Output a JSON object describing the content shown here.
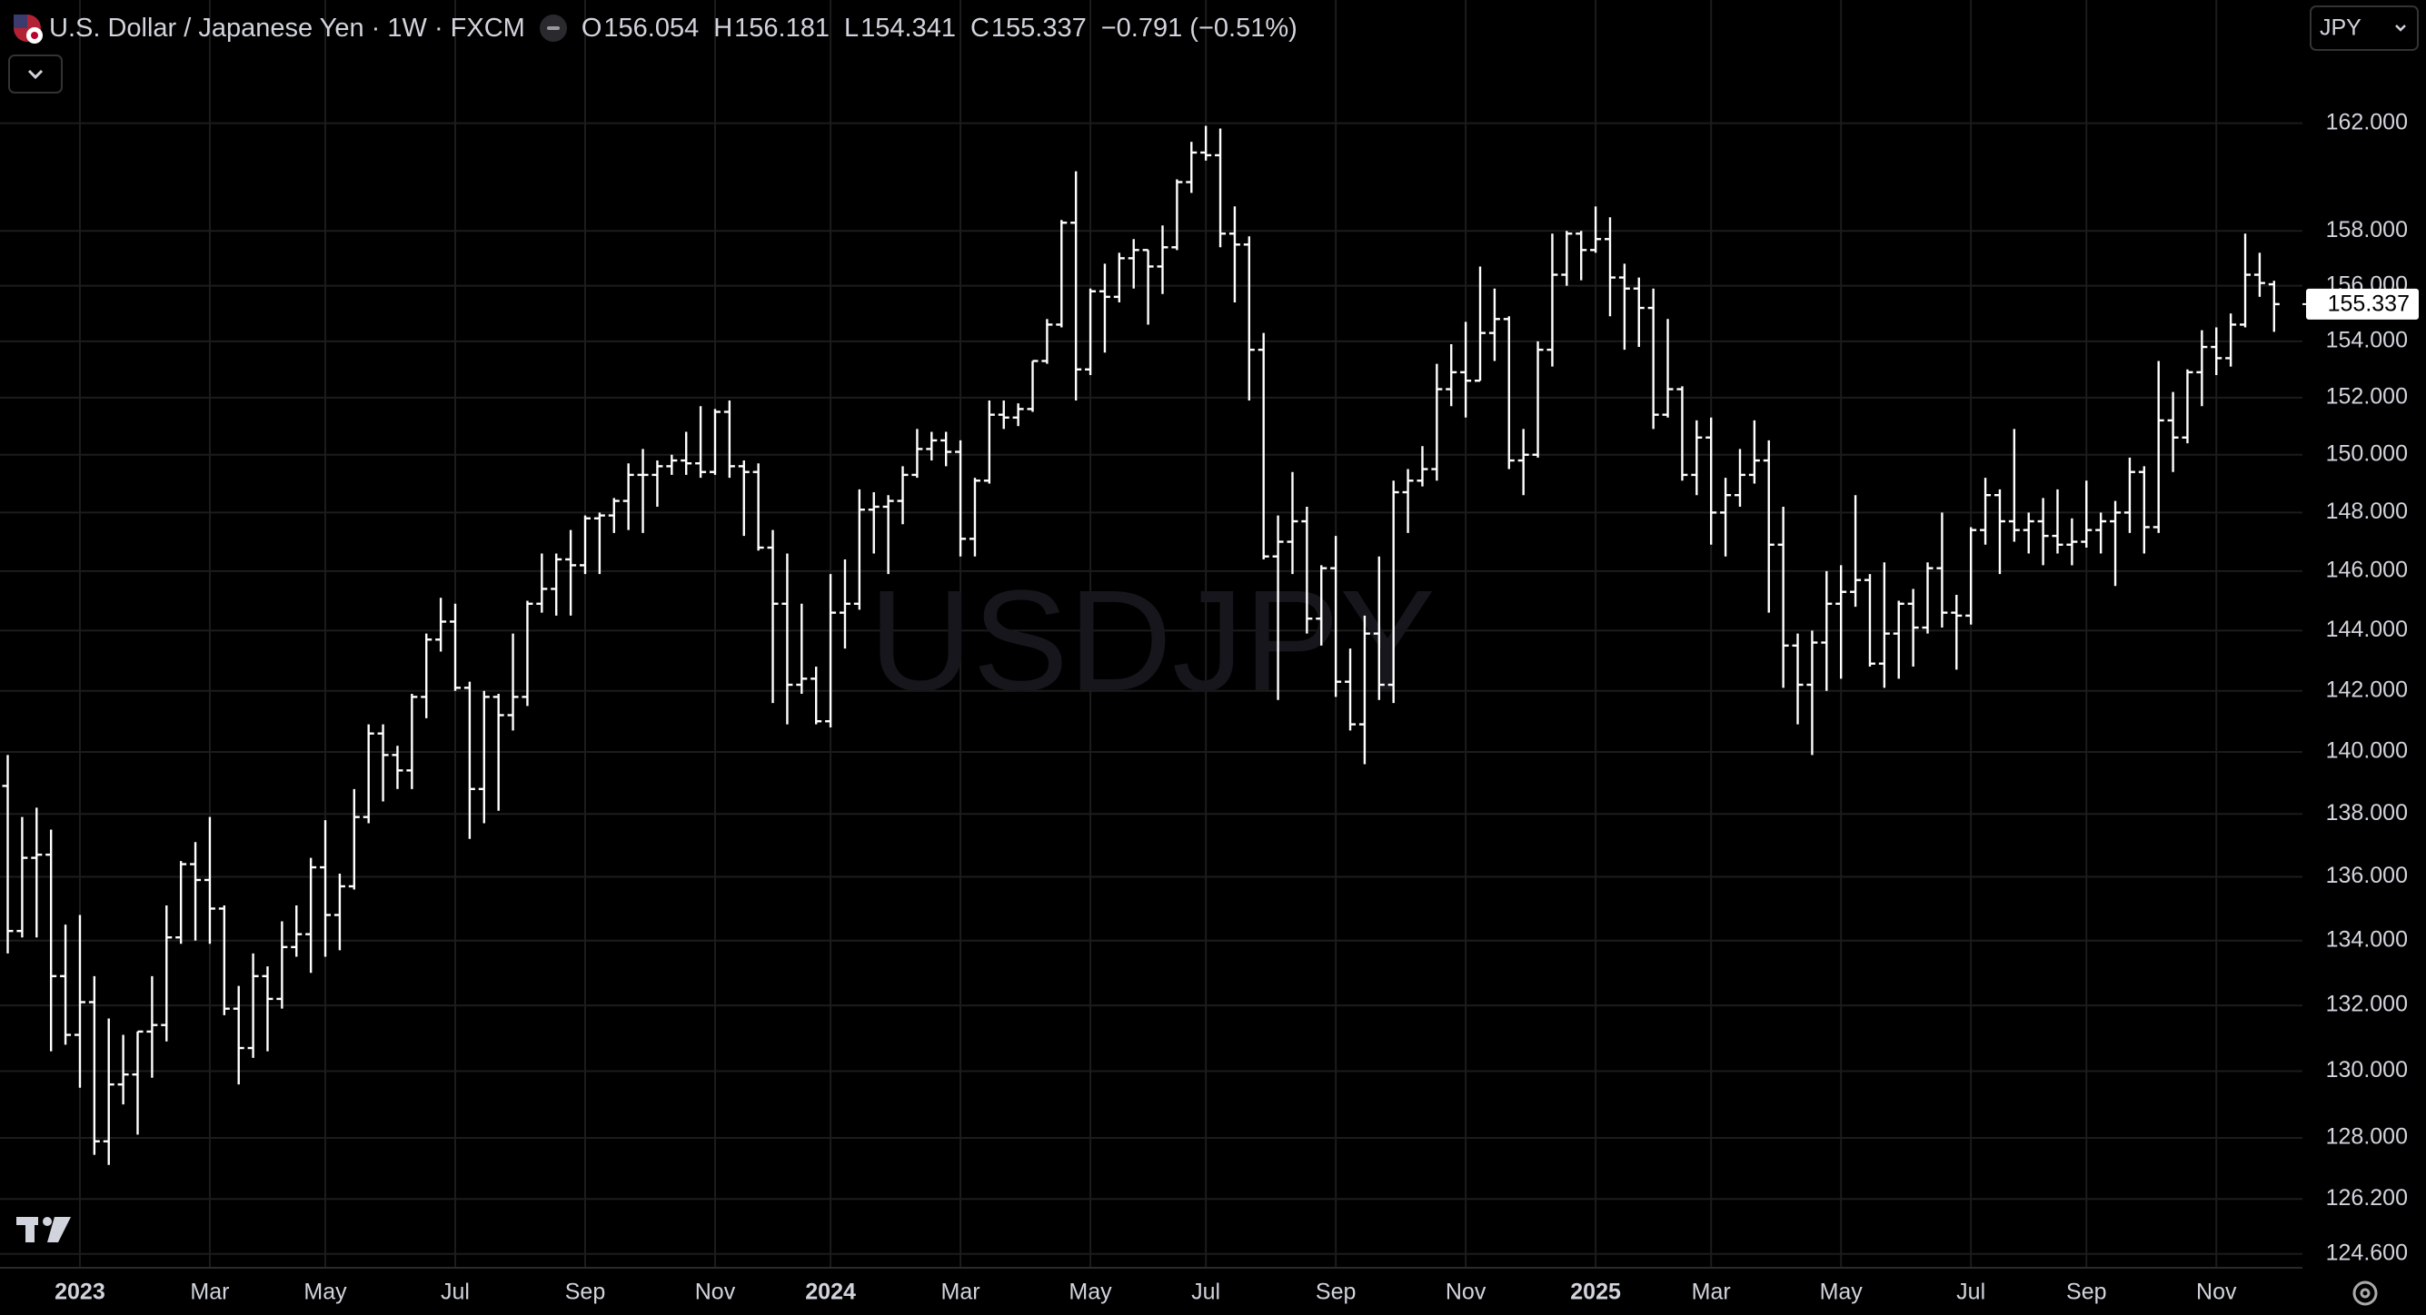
{
  "chart_data": {
    "type": "ohlc",
    "title": "U.S. Dollar / Japanese Yen · 1W · FXCM",
    "ohlc_labels": [
      "O",
      "H",
      "L",
      "C"
    ],
    "change": "−0.791 (−0.51%)",
    "currency": "JPY",
    "watermark": "USDJPY",
    "log_scale": true,
    "grid": true,
    "color": "#ffffff",
    "open": [
      138.9,
      134.3,
      136.6,
      136.7,
      132.9,
      131.1,
      132.1,
      127.9,
      129.6,
      129.9,
      131.2,
      131.4,
      134.1,
      136.4,
      135.9,
      135.0,
      131.9,
      130.7,
      132.9,
      132.2,
      133.8,
      134.2,
      136.3,
      134.8,
      135.7,
      137.9,
      140.6,
      139.9,
      139.4,
      141.8,
      143.7,
      144.3,
      142.1,
      138.8,
      141.8,
      141.2,
      141.8,
      144.9,
      145.4,
      146.4,
      146.2,
      147.8,
      147.9,
      148.4,
      149.3,
      149.3,
      149.6,
      149.8,
      149.7,
      149.4,
      151.5,
      149.6,
      149.4,
      146.8,
      144.9,
      142.2,
      142.4,
      141.0,
      144.6,
      144.9,
      148.1,
      148.2,
      148.4,
      149.3,
      150.2,
      150.5,
      150.1,
      147.1,
      149.1,
      151.4,
      151.3,
      151.6,
      153.3,
      154.6,
      158.3,
      153.0,
      155.8,
      155.6,
      157.0,
      157.3,
      156.7,
      157.4,
      159.8,
      160.9,
      160.8,
      157.9,
      157.5,
      153.7,
      146.5,
      147.0,
      147.7,
      144.4,
      146.1,
      142.3,
      140.9,
      143.9,
      142.2,
      148.7,
      149.1,
      149.5,
      152.3,
      152.9,
      152.6,
      154.3,
      154.8,
      149.8,
      150.0,
      153.7,
      156.4,
      157.9,
      157.3,
      157.7,
      156.3,
      155.9,
      155.2,
      151.4,
      152.3,
      149.3,
      150.6,
      148.0,
      148.6,
      149.3,
      149.8,
      146.9,
      143.5,
      142.2,
      143.6,
      144.9,
      145.3,
      145.7,
      142.9,
      143.9,
      144.9,
      144.1,
      146.1,
      144.6,
      144.5,
      147.4,
      148.6,
      147.7,
      147.4,
      147.7,
      147.2,
      146.9,
      147.0,
      147.4,
      147.7,
      148.0,
      149.4,
      147.5,
      151.2,
      150.6,
      152.9,
      153.8,
      153.4,
      154.6,
      156.4,
      156.054
    ],
    "high": [
      139.9,
      137.9,
      138.2,
      137.5,
      134.5,
      134.8,
      132.9,
      131.6,
      131.1,
      131.2,
      132.9,
      135.1,
      136.5,
      137.1,
      137.9,
      135.1,
      132.6,
      133.6,
      133.2,
      134.6,
      135.1,
      136.6,
      137.8,
      136.1,
      138.8,
      140.9,
      140.9,
      140.2,
      141.9,
      143.9,
      145.1,
      144.9,
      142.3,
      142.0,
      141.9,
      143.9,
      145.0,
      146.6,
      146.6,
      147.4,
      147.9,
      148.0,
      148.5,
      149.7,
      150.2,
      149.8,
      150.0,
      150.8,
      151.7,
      151.6,
      151.9,
      149.8,
      149.7,
      147.4,
      146.6,
      144.9,
      142.8,
      145.9,
      146.4,
      148.8,
      148.7,
      148.6,
      149.6,
      150.9,
      150.8,
      150.8,
      150.5,
      149.2,
      151.9,
      151.9,
      151.8,
      153.3,
      154.8,
      158.4,
      160.2,
      155.9,
      156.8,
      157.2,
      157.7,
      157.3,
      158.2,
      159.9,
      161.3,
      161.9,
      161.8,
      158.9,
      157.8,
      154.3,
      147.9,
      149.4,
      148.2,
      146.2,
      147.2,
      143.4,
      144.5,
      146.5,
      149.1,
      149.5,
      150.3,
      153.2,
      153.9,
      154.7,
      156.7,
      155.9,
      154.9,
      150.9,
      154.0,
      157.9,
      158.0,
      158.0,
      158.9,
      158.5,
      156.8,
      156.3,
      155.9,
      154.8,
      152.4,
      151.2,
      151.3,
      149.2,
      150.2,
      151.2,
      150.5,
      148.2,
      143.9,
      144.0,
      146.0,
      146.2,
      148.6,
      145.9,
      146.3,
      145.0,
      145.4,
      146.3,
      148.0,
      145.2,
      147.5,
      149.2,
      148.8,
      150.9,
      148.0,
      148.5,
      148.8,
      147.8,
      149.1,
      148.0,
      148.4,
      149.9,
      149.6,
      153.3,
      152.2,
      153.0,
      154.4,
      154.5,
      155.0,
      157.9,
      157.2,
      156.181
    ],
    "low": [
      133.6,
      134.1,
      134.1,
      130.6,
      130.8,
      129.5,
      127.5,
      127.2,
      129.0,
      128.1,
      129.8,
      130.9,
      133.9,
      134.0,
      133.9,
      131.7,
      129.6,
      130.4,
      130.6,
      131.9,
      133.5,
      133.0,
      133.5,
      133.7,
      135.6,
      137.7,
      138.4,
      138.8,
      138.8,
      141.1,
      143.3,
      142.0,
      137.2,
      137.7,
      138.1,
      140.7,
      141.5,
      144.6,
      144.5,
      144.5,
      145.9,
      145.9,
      147.3,
      147.4,
      147.3,
      148.2,
      149.3,
      149.3,
      149.2,
      149.3,
      149.2,
      147.2,
      146.7,
      141.6,
      140.9,
      141.9,
      140.9,
      140.8,
      143.4,
      144.7,
      146.6,
      145.9,
      147.6,
      149.2,
      149.8,
      149.6,
      146.5,
      146.5,
      149.0,
      150.9,
      151.0,
      151.5,
      153.2,
      154.5,
      151.9,
      152.8,
      153.6,
      155.4,
      155.9,
      154.6,
      155.7,
      157.3,
      159.4,
      160.6,
      157.4,
      155.4,
      151.9,
      146.4,
      141.7,
      145.9,
      143.9,
      143.5,
      141.8,
      140.7,
      139.6,
      141.7,
      141.6,
      147.3,
      148.9,
      149.1,
      151.7,
      151.3,
      152.6,
      153.3,
      149.5,
      148.6,
      149.9,
      153.1,
      156.0,
      156.2,
      157.2,
      154.9,
      153.7,
      153.8,
      150.9,
      151.3,
      149.1,
      148.6,
      146.9,
      146.5,
      148.2,
      149.0,
      144.6,
      142.1,
      140.9,
      139.9,
      142.0,
      142.4,
      144.8,
      142.8,
      142.1,
      142.4,
      142.8,
      143.9,
      144.1,
      142.7,
      144.2,
      146.9,
      145.9,
      147.0,
      146.6,
      146.2,
      146.6,
      146.2,
      146.8,
      146.6,
      145.5,
      147.3,
      146.6,
      147.3,
      149.4,
      150.4,
      151.7,
      152.8,
      153.1,
      154.5,
      155.6,
      154.341
    ],
    "close": [
      134.3,
      136.6,
      136.7,
      132.9,
      131.1,
      132.1,
      127.9,
      129.6,
      129.9,
      131.2,
      131.4,
      134.1,
      136.4,
      135.9,
      135.0,
      131.9,
      130.7,
      132.9,
      132.2,
      133.8,
      134.2,
      136.3,
      134.8,
      135.7,
      137.9,
      140.6,
      139.9,
      139.4,
      141.8,
      143.7,
      144.3,
      142.1,
      138.8,
      141.8,
      141.2,
      141.8,
      144.9,
      145.4,
      146.4,
      146.2,
      147.8,
      147.9,
      148.4,
      149.3,
      149.3,
      149.6,
      149.8,
      149.7,
      149.4,
      151.5,
      149.6,
      149.4,
      146.8,
      144.9,
      142.2,
      142.4,
      141.0,
      144.6,
      144.9,
      148.1,
      148.2,
      148.4,
      149.3,
      150.2,
      150.5,
      150.1,
      147.1,
      149.1,
      151.4,
      151.3,
      151.6,
      153.3,
      154.6,
      158.3,
      153.0,
      155.8,
      155.6,
      157.0,
      157.3,
      156.7,
      157.4,
      159.8,
      160.9,
      160.8,
      157.9,
      157.5,
      153.7,
      146.5,
      147.0,
      147.7,
      144.4,
      146.1,
      142.3,
      140.9,
      143.9,
      142.2,
      148.7,
      149.1,
      149.5,
      152.3,
      152.9,
      152.6,
      154.3,
      154.8,
      149.8,
      150.0,
      153.7,
      156.4,
      157.9,
      157.3,
      157.7,
      156.3,
      155.9,
      155.2,
      151.4,
      152.3,
      149.3,
      150.6,
      148.0,
      148.6,
      149.3,
      149.8,
      146.9,
      143.5,
      142.2,
      143.6,
      144.9,
      145.3,
      145.7,
      142.9,
      143.9,
      144.9,
      144.1,
      146.1,
      144.6,
      144.5,
      147.4,
      148.6,
      147.7,
      147.4,
      147.7,
      147.2,
      146.9,
      147.0,
      147.4,
      147.7,
      148.0,
      149.4,
      147.5,
      151.2,
      150.6,
      152.9,
      153.8,
      153.4,
      154.6,
      156.4,
      156.1,
      155.337
    ],
    "ylim": [
      124.2,
      166.7
    ],
    "yticks": [
      {
        "value": 124.6,
        "label": "124.600"
      },
      {
        "value": 126.2,
        "label": "126.200"
      },
      {
        "value": 128,
        "label": "128.000"
      },
      {
        "value": 130,
        "label": "130.000"
      },
      {
        "value": 132,
        "label": "132.000"
      },
      {
        "value": 134,
        "label": "134.000"
      },
      {
        "value": 136,
        "label": "136.000"
      },
      {
        "value": 138,
        "label": "138.000"
      },
      {
        "value": 140,
        "label": "140.000"
      },
      {
        "value": 142,
        "label": "142.000"
      },
      {
        "value": 144,
        "label": "144.000"
      },
      {
        "value": 146,
        "label": "146.000"
      },
      {
        "value": 148,
        "label": "148.000"
      },
      {
        "value": 150,
        "label": "150.000"
      },
      {
        "value": 152,
        "label": "152.000"
      },
      {
        "value": 154,
        "label": "154.000"
      },
      {
        "value": 156,
        "label": "156.000"
      },
      {
        "value": 158,
        "label": "158.000"
      },
      {
        "value": 162,
        "label": "162.000"
      }
    ],
    "xticks": [
      {
        "value": 5,
        "label": "2023"
      },
      {
        "value": 14,
        "label": "Mar"
      },
      {
        "value": 22,
        "label": "May"
      },
      {
        "value": 31,
        "label": "Jul"
      },
      {
        "value": 40,
        "label": "Sep"
      },
      {
        "value": 49,
        "label": "Nov"
      },
      {
        "value": 57,
        "label": "2024"
      },
      {
        "value": 66,
        "label": "Mar"
      },
      {
        "value": 75,
        "label": "May"
      },
      {
        "value": 83,
        "label": "Jul"
      },
      {
        "value": 92,
        "label": "Sep"
      },
      {
        "value": 101,
        "label": "Nov"
      },
      {
        "value": 110,
        "label": "2025"
      },
      {
        "value": 118,
        "label": "Mar"
      },
      {
        "value": 127,
        "label": "May"
      },
      {
        "value": 136,
        "label": "Jul"
      },
      {
        "value": 144,
        "label": "Sep"
      },
      {
        "value": 153,
        "label": "Nov"
      }
    ]
  }
}
